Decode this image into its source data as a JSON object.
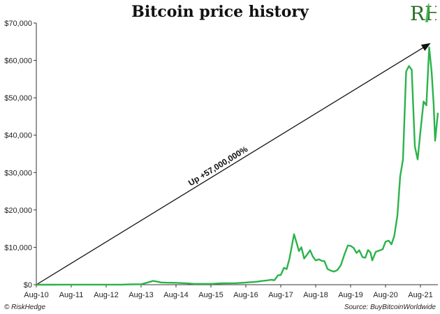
{
  "header": {
    "title": "Bitcoin price history",
    "logo_text": "RH"
  },
  "footer": {
    "brand": "© RiskHedge",
    "source": "Source: BuyBitcoinWorldwide"
  },
  "colors": {
    "line": "#2bb34a",
    "axis": "#333333",
    "arrow": "#111111",
    "logo": "#2a6e2a",
    "logo_accent": "#3cb043"
  },
  "chart_data": {
    "type": "line",
    "title": "Bitcoin price history",
    "xlabel": "",
    "ylabel": "",
    "grid": false,
    "x_range": [
      2010.58,
      2022.08
    ],
    "ylim": [
      0,
      70000
    ],
    "y_ticks": [
      0,
      10000,
      20000,
      30000,
      40000,
      50000,
      60000,
      70000
    ],
    "y_tick_labels": [
      "$0",
      "$10,000",
      "$20,000",
      "$30,000",
      "$40,000",
      "$50,000",
      "$60,000",
      "$70,000"
    ],
    "x_ticks": [
      2010.58,
      2011.58,
      2012.58,
      2013.58,
      2014.58,
      2015.58,
      2016.58,
      2017.58,
      2018.58,
      2019.58,
      2020.58,
      2021.58
    ],
    "x_tick_labels": [
      "Aug-10",
      "Aug-11",
      "Aug-12",
      "Aug-13",
      "Aug-14",
      "Aug-15",
      "Aug-16",
      "Aug-17",
      "Aug-18",
      "Aug-19",
      "Aug-20",
      "Aug-21"
    ],
    "annotation": {
      "text": "Up +57,000,000%",
      "arrow_from": [
        2010.58,
        0
      ],
      "arrow_to": [
        2021.85,
        64500
      ]
    },
    "series": [
      {
        "x": [
          2010.58,
          2011.0,
          2011.42,
          2011.58,
          2012.0,
          2012.58,
          2013.0,
          2013.3,
          2013.58,
          2013.85,
          2013.92,
          2014.05,
          2014.15,
          2014.3,
          2014.58,
          2014.9,
          2015.1,
          2015.58,
          2015.9,
          2016.3,
          2016.58,
          2016.9,
          2017.0,
          2017.15,
          2017.3,
          2017.4,
          2017.5,
          2017.58,
          2017.67,
          2017.75,
          2017.83,
          2017.9,
          2017.96,
          2018.04,
          2018.1,
          2018.17,
          2018.25,
          2018.33,
          2018.42,
          2018.5,
          2018.58,
          2018.67,
          2018.75,
          2018.83,
          2018.92,
          2019.0,
          2019.1,
          2019.2,
          2019.3,
          2019.4,
          2019.5,
          2019.58,
          2019.67,
          2019.75,
          2019.83,
          2019.92,
          2020.0,
          2020.08,
          2020.15,
          2020.2,
          2020.3,
          2020.42,
          2020.5,
          2020.58,
          2020.67,
          2020.75,
          2020.83,
          2020.92,
          2021.0,
          2021.08,
          2021.17,
          2021.25,
          2021.33,
          2021.42,
          2021.5,
          2021.58,
          2021.67,
          2021.75,
          2021.83,
          2021.9,
          2021.96,
          2022.0,
          2022.08
        ],
        "values": [
          0,
          1,
          20,
          10,
          10,
          10,
          15,
          100,
          110,
          800,
          1000,
          800,
          600,
          550,
          500,
          350,
          220,
          230,
          380,
          420,
          580,
          800,
          950,
          1100,
          1300,
          1200,
          2500,
          2600,
          4500,
          4200,
          7000,
          10500,
          13500,
          11000,
          9000,
          10000,
          7000,
          8000,
          9200,
          7500,
          6500,
          6800,
          6400,
          6300,
          4200,
          3800,
          3500,
          3900,
          5200,
          8000,
          10500,
          10400,
          9800,
          8500,
          9200,
          7400,
          7200,
          9300,
          8600,
          6500,
          8800,
          9200,
          9500,
          11500,
          11800,
          10800,
          13000,
          18500,
          29000,
          33500,
          57000,
          58500,
          57500,
          37000,
          33500,
          41000,
          49000,
          48000,
          63500,
          57000,
          48000,
          38500,
          46000
        ]
      }
    ]
  }
}
